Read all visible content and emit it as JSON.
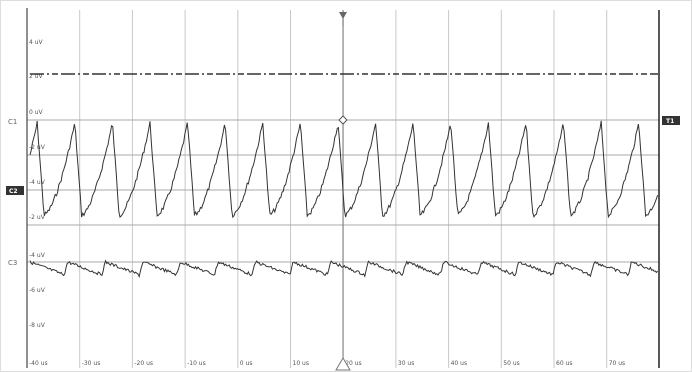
{
  "screen": {
    "bg": "#ffffff",
    "grid_color": "#c8c8c8",
    "trace_color": "#333333",
    "axis_color": "#222222"
  },
  "markers": {
    "ch1": "C1",
    "ch2": "C2",
    "ch3": "C3",
    "trigger": "T1"
  },
  "y_tick_labels": [
    "4 uV",
    "2 uV",
    "0 uV",
    "-2 uV",
    "-4 uV",
    "-2 uV",
    "-4 uV",
    "-6 uV",
    "-8 uV"
  ],
  "x_tick_labels": [
    "-40 us",
    "-30 us",
    "-20 us",
    "-10 us",
    "0 us",
    "10 us",
    "20 us",
    "30 us",
    "40 us",
    "50 us",
    "60 us",
    "70 us"
  ],
  "icons": {
    "trigger_top": "trigger-arrow-down-icon",
    "trigger_bottom": "trigger-triangle-icon",
    "cursor": "cursor-diamond-icon"
  }
}
